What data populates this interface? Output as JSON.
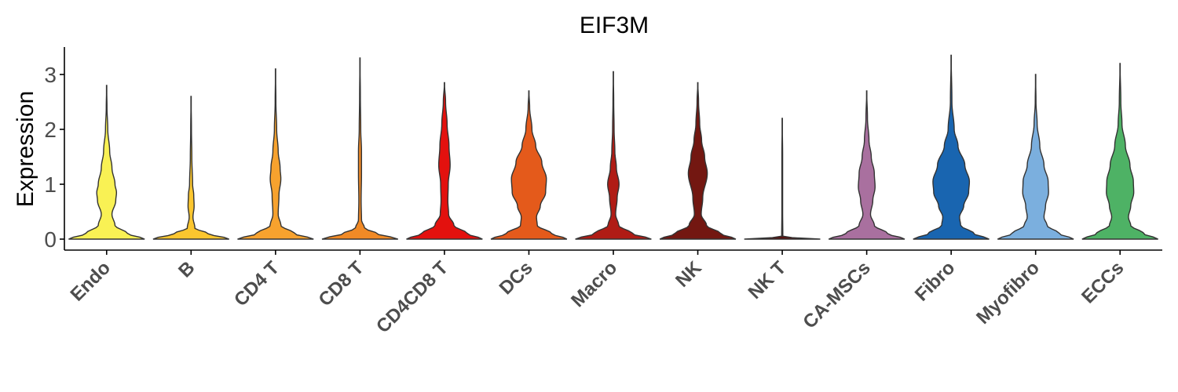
{
  "chart_data": {
    "type": "violin",
    "title": "EIF3M",
    "xlabel": "",
    "ylabel": "Expression",
    "ylim": [
      -0.2,
      3.5
    ],
    "yticks": [
      0,
      1,
      2,
      3
    ],
    "grid": false,
    "legend": "none",
    "categories": [
      "Endo",
      "B",
      "CD4 T",
      "CD8 T",
      "CD4CD8 T",
      "DCs",
      "Macro",
      "NK",
      "NK T",
      "CA-MSCs",
      "Fibro",
      "Myofibro",
      "ECCs"
    ],
    "series": [
      {
        "category": "Endo",
        "color": "#f9f154",
        "max": 2.8,
        "density": [
          [
            0,
            1.0
          ],
          [
            0.1,
            0.55
          ],
          [
            0.25,
            0.22
          ],
          [
            0.45,
            0.14
          ],
          [
            0.7,
            0.24
          ],
          [
            0.85,
            0.26
          ],
          [
            1.0,
            0.22
          ],
          [
            1.3,
            0.14
          ],
          [
            1.6,
            0.08
          ],
          [
            2.0,
            0.03
          ],
          [
            2.4,
            0.01
          ],
          [
            2.8,
            0.0
          ]
        ]
      },
      {
        "category": "B",
        "color": "#fbc62f",
        "max": 2.6,
        "density": [
          [
            0,
            1.0
          ],
          [
            0.1,
            0.45
          ],
          [
            0.2,
            0.1
          ],
          [
            0.4,
            0.05
          ],
          [
            0.6,
            0.08
          ],
          [
            0.8,
            0.07
          ],
          [
            1.0,
            0.04
          ],
          [
            1.5,
            0.02
          ],
          [
            2.0,
            0.01
          ],
          [
            2.6,
            0.0
          ]
        ]
      },
      {
        "category": "CD4 T",
        "color": "#f7a22e",
        "max": 3.1,
        "density": [
          [
            0,
            1.0
          ],
          [
            0.1,
            0.5
          ],
          [
            0.25,
            0.14
          ],
          [
            0.45,
            0.07
          ],
          [
            0.8,
            0.09
          ],
          [
            1.1,
            0.14
          ],
          [
            1.3,
            0.12
          ],
          [
            1.6,
            0.07
          ],
          [
            2.0,
            0.03
          ],
          [
            2.5,
            0.01
          ],
          [
            3.1,
            0.0
          ]
        ]
      },
      {
        "category": "CD8 T",
        "color": "#f18a26",
        "max": 3.3,
        "density": [
          [
            0,
            1.0
          ],
          [
            0.1,
            0.45
          ],
          [
            0.2,
            0.12
          ],
          [
            0.35,
            0.04
          ],
          [
            0.7,
            0.03
          ],
          [
            1.2,
            0.04
          ],
          [
            1.6,
            0.04
          ],
          [
            2.0,
            0.02
          ],
          [
            2.6,
            0.01
          ],
          [
            3.3,
            0.0
          ]
        ]
      },
      {
        "category": "CD4CD8 T",
        "color": "#e3110e",
        "max": 2.85,
        "density": [
          [
            0,
            1.0
          ],
          [
            0.1,
            0.6
          ],
          [
            0.25,
            0.25
          ],
          [
            0.45,
            0.11
          ],
          [
            0.7,
            0.09
          ],
          [
            1.0,
            0.1
          ],
          [
            1.35,
            0.15
          ],
          [
            1.7,
            0.12
          ],
          [
            2.1,
            0.07
          ],
          [
            2.5,
            0.03
          ],
          [
            2.85,
            0.0
          ]
        ]
      },
      {
        "category": "DCs",
        "color": "#e45a1b",
        "max": 2.7,
        "density": [
          [
            0,
            1.0
          ],
          [
            0.1,
            0.6
          ],
          [
            0.25,
            0.22
          ],
          [
            0.4,
            0.2
          ],
          [
            0.6,
            0.3
          ],
          [
            0.85,
            0.44
          ],
          [
            1.1,
            0.46
          ],
          [
            1.4,
            0.34
          ],
          [
            1.7,
            0.18
          ],
          [
            2.0,
            0.08
          ],
          [
            2.4,
            0.02
          ],
          [
            2.7,
            0.0
          ]
        ]
      },
      {
        "category": "Macro",
        "color": "#b01c15",
        "max": 3.05,
        "density": [
          [
            0,
            1.0
          ],
          [
            0.1,
            0.5
          ],
          [
            0.25,
            0.14
          ],
          [
            0.45,
            0.06
          ],
          [
            0.75,
            0.1
          ],
          [
            1.0,
            0.15
          ],
          [
            1.3,
            0.08
          ],
          [
            1.6,
            0.04
          ],
          [
            2.0,
            0.02
          ],
          [
            2.5,
            0.01
          ],
          [
            3.05,
            0.0
          ]
        ]
      },
      {
        "category": "NK",
        "color": "#731711",
        "max": 2.85,
        "density": [
          [
            0,
            1.0
          ],
          [
            0.1,
            0.6
          ],
          [
            0.25,
            0.23
          ],
          [
            0.45,
            0.09
          ],
          [
            0.75,
            0.13
          ],
          [
            1.2,
            0.25
          ],
          [
            1.5,
            0.18
          ],
          [
            1.8,
            0.1
          ],
          [
            2.1,
            0.05
          ],
          [
            2.5,
            0.02
          ],
          [
            2.85,
            0.0
          ]
        ]
      },
      {
        "category": "NK T",
        "color": "#5a1310",
        "max": 2.2,
        "density": [
          [
            0,
            1.0
          ],
          [
            0.02,
            0.3
          ],
          [
            0.05,
            0.015
          ],
          [
            0.5,
            0.01
          ],
          [
            1.0,
            0.01
          ],
          [
            1.5,
            0.01
          ],
          [
            2.2,
            0.0
          ]
        ]
      },
      {
        "category": "CA-MSCs",
        "color": "#a9709f",
        "max": 2.7,
        "density": [
          [
            0,
            1.0
          ],
          [
            0.1,
            0.55
          ],
          [
            0.25,
            0.2
          ],
          [
            0.45,
            0.1
          ],
          [
            0.7,
            0.16
          ],
          [
            0.95,
            0.22
          ],
          [
            1.2,
            0.2
          ],
          [
            1.5,
            0.12
          ],
          [
            1.8,
            0.06
          ],
          [
            2.2,
            0.02
          ],
          [
            2.7,
            0.0
          ]
        ]
      },
      {
        "category": "Fibro",
        "color": "#1965b0",
        "max": 3.35,
        "density": [
          [
            0,
            1.0
          ],
          [
            0.1,
            0.6
          ],
          [
            0.25,
            0.25
          ],
          [
            0.4,
            0.22
          ],
          [
            0.6,
            0.33
          ],
          [
            0.85,
            0.46
          ],
          [
            1.05,
            0.48
          ],
          [
            1.35,
            0.36
          ],
          [
            1.7,
            0.18
          ],
          [
            2.0,
            0.08
          ],
          [
            2.5,
            0.02
          ],
          [
            3.35,
            0.0
          ]
        ]
      },
      {
        "category": "Myofibro",
        "color": "#7bafde",
        "max": 3.0,
        "density": [
          [
            0,
            1.0
          ],
          [
            0.1,
            0.62
          ],
          [
            0.25,
            0.3
          ],
          [
            0.4,
            0.22
          ],
          [
            0.6,
            0.26
          ],
          [
            0.85,
            0.34
          ],
          [
            1.05,
            0.33
          ],
          [
            1.35,
            0.22
          ],
          [
            1.7,
            0.11
          ],
          [
            2.1,
            0.04
          ],
          [
            2.5,
            0.01
          ],
          [
            3.0,
            0.0
          ]
        ]
      },
      {
        "category": "ECCs",
        "color": "#4eb265",
        "max": 3.2,
        "density": [
          [
            0,
            1.0
          ],
          [
            0.1,
            0.62
          ],
          [
            0.25,
            0.28
          ],
          [
            0.4,
            0.22
          ],
          [
            0.6,
            0.28
          ],
          [
            0.85,
            0.36
          ],
          [
            1.05,
            0.35
          ],
          [
            1.35,
            0.26
          ],
          [
            1.7,
            0.14
          ],
          [
            2.1,
            0.05
          ],
          [
            2.5,
            0.02
          ],
          [
            3.2,
            0.0
          ]
        ]
      }
    ]
  }
}
